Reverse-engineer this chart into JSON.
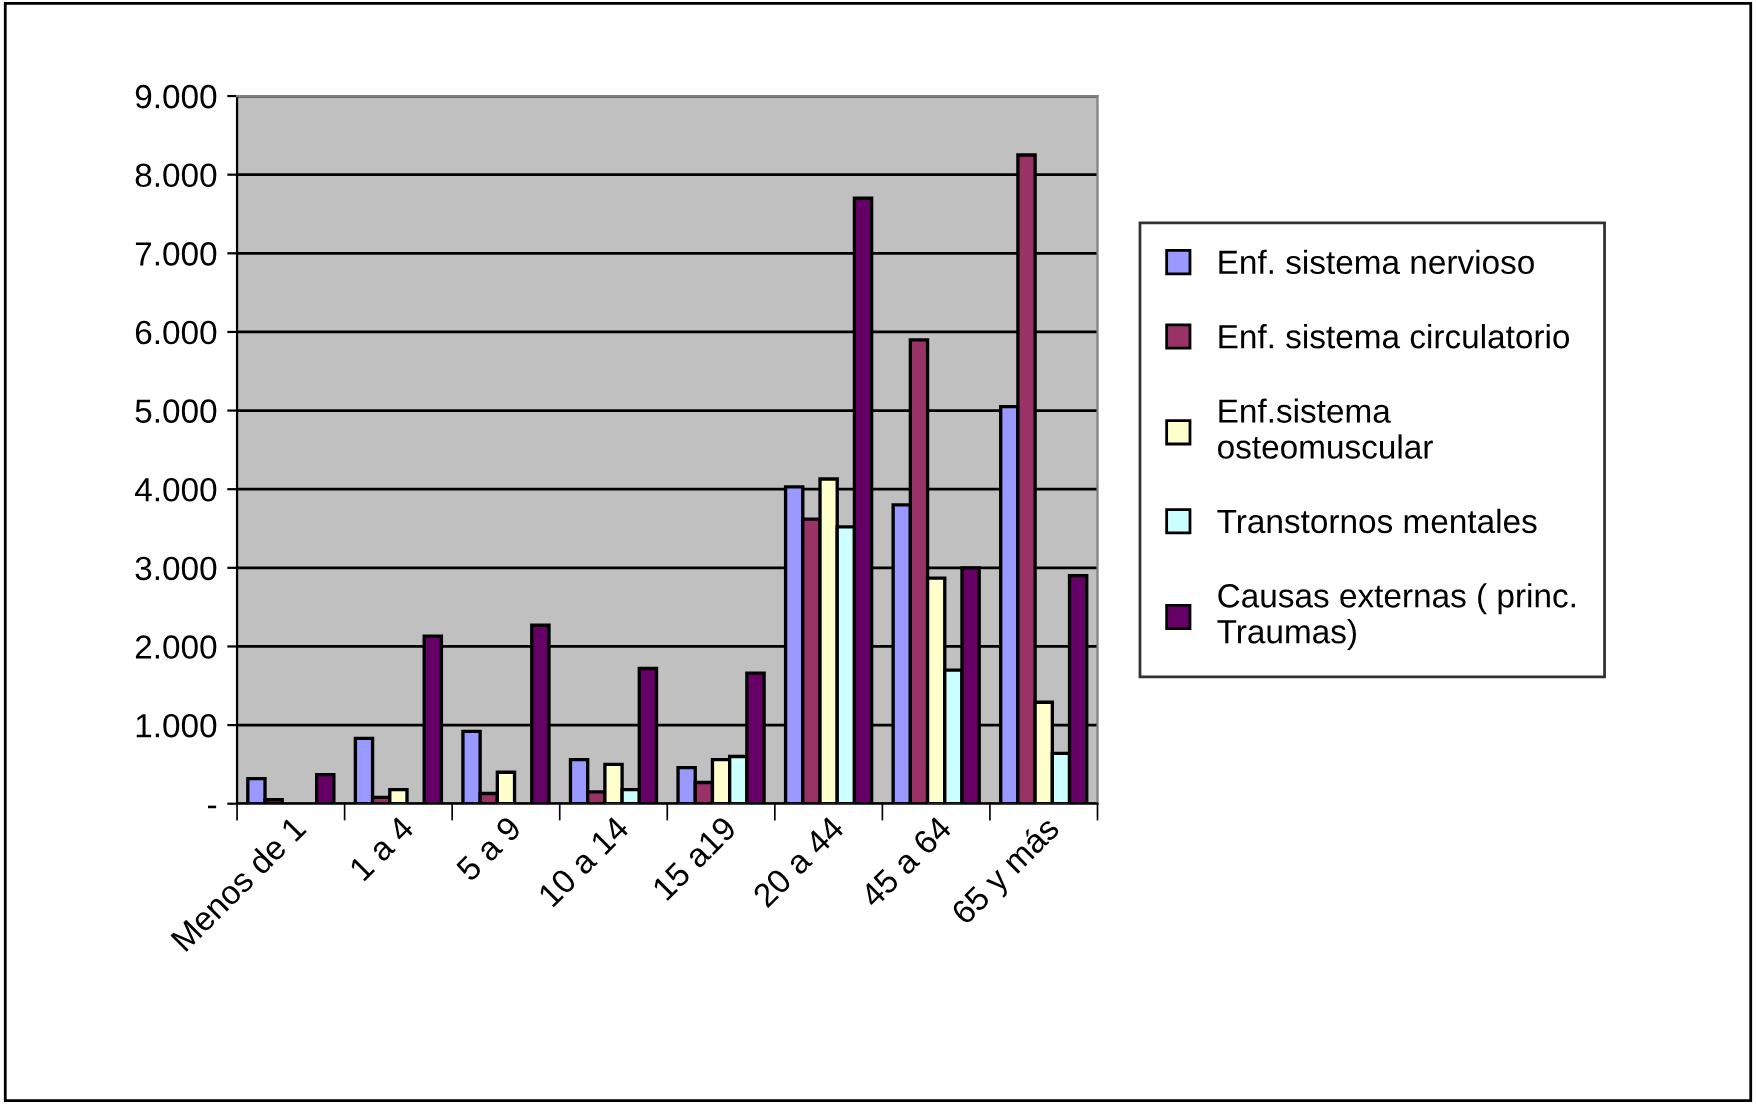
{
  "chart_data": {
    "type": "bar",
    "categories": [
      "Menos de 1",
      "1 a 4",
      "5 a 9",
      "10 a 14",
      "15 a19",
      "20 a 44",
      "45 a 64",
      "65 y más"
    ],
    "series": [
      {
        "name": "Enf. sistema nervioso",
        "color": "#9999ff",
        "values": [
          320,
          830,
          920,
          560,
          460,
          4030,
          3800,
          5050
        ]
      },
      {
        "name": "Enf. sistema circulatorio",
        "color": "#993366",
        "values": [
          50,
          80,
          130,
          150,
          270,
          3620,
          5900,
          8250
        ]
      },
      {
        "name": "Enf.sistema\nosteomuscular",
        "color": "#ffffcc",
        "values": [
          null,
          180,
          400,
          500,
          560,
          4130,
          2870,
          1290
        ]
      },
      {
        "name": "Transtornos mentales",
        "color": "#ccffff",
        "values": [
          null,
          null,
          null,
          180,
          600,
          3520,
          1700,
          640
        ]
      },
      {
        "name": "Causas externas ( princ.\nTraumas)",
        "color": "#660066",
        "values": [
          370,
          2130,
          2270,
          1720,
          1660,
          7700,
          3000,
          2900
        ]
      }
    ],
    "ylim": [
      0,
      9000
    ],
    "yticks": [
      {
        "value": 0,
        "label": "-"
      },
      {
        "value": 1000,
        "label": "1.000"
      },
      {
        "value": 2000,
        "label": "2.000"
      },
      {
        "value": 3000,
        "label": "3.000"
      },
      {
        "value": 4000,
        "label": "4.000"
      },
      {
        "value": 5000,
        "label": "5.000"
      },
      {
        "value": 6000,
        "label": "6.000"
      },
      {
        "value": 7000,
        "label": "7.000"
      },
      {
        "value": 8000,
        "label": "8.000"
      },
      {
        "value": 9000,
        "label": "9.000"
      }
    ],
    "grid": "y",
    "legend": "right"
  }
}
